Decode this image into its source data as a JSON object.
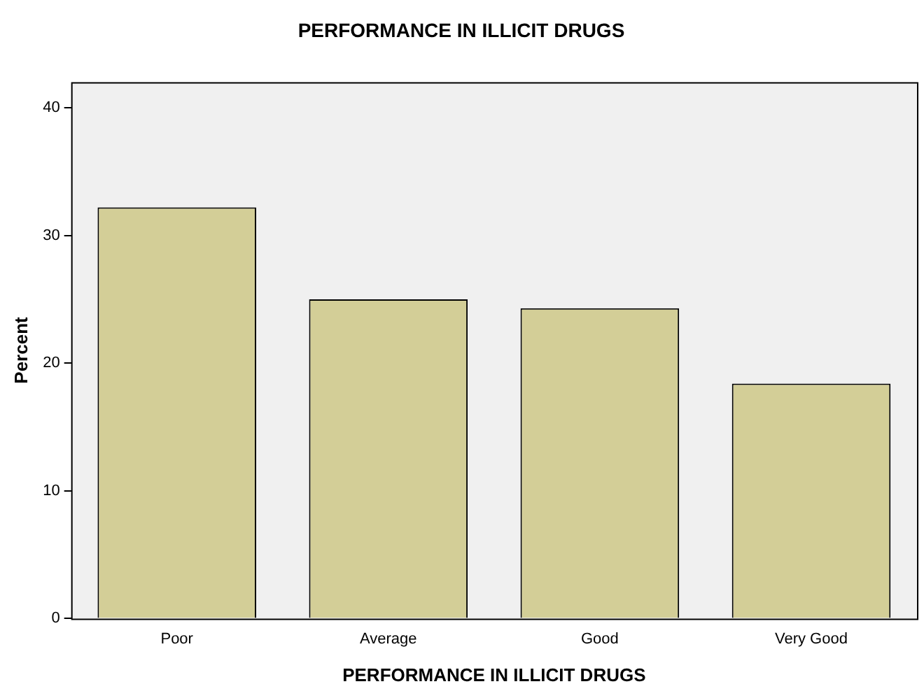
{
  "chart_data": {
    "type": "bar",
    "title": "PERFORMANCE IN ILLICIT DRUGS",
    "xlabel": "PERFORMANCE IN ILLICIT DRUGS",
    "ylabel": "Percent",
    "categories": [
      "Poor",
      "Average",
      "Good",
      "Very Good"
    ],
    "values": [
      32.2,
      25.0,
      24.3,
      18.4
    ],
    "color": "#d3ce97",
    "ylim": [
      0,
      42
    ],
    "yticks": [
      0,
      10,
      20,
      30,
      40
    ],
    "grid": false,
    "legend": false
  }
}
